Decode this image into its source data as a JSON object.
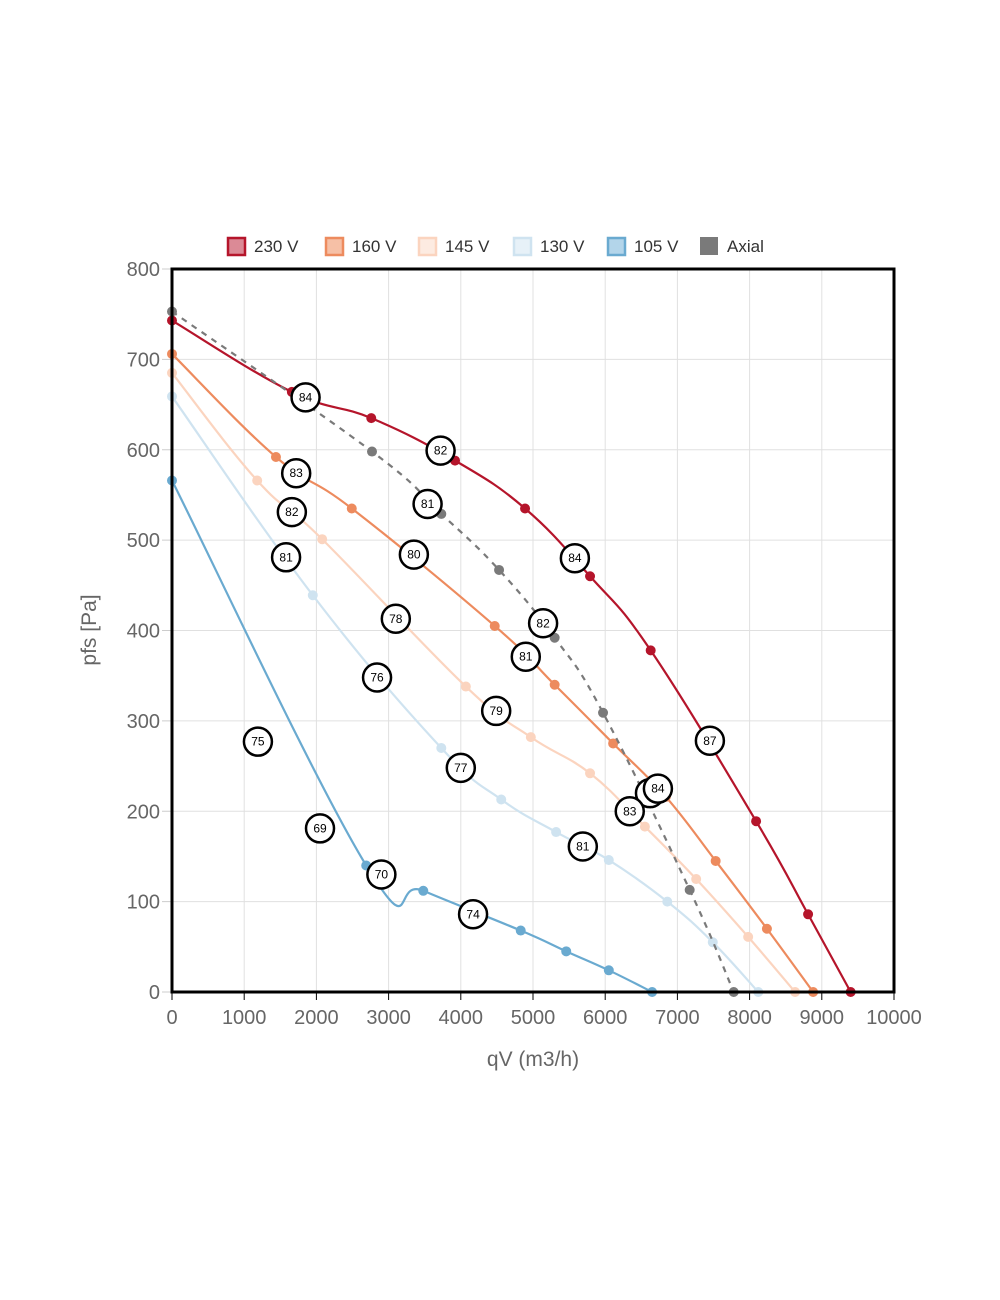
{
  "chart_data": {
    "type": "line",
    "title": "",
    "xlabel": "qV (m3/h)",
    "ylabel": "pfs [Pa]",
    "xlim": [
      0,
      10000
    ],
    "ylim": [
      0,
      800
    ],
    "xticks": [
      0,
      1000,
      2000,
      3000,
      4000,
      5000,
      6000,
      7000,
      8000,
      9000,
      10000
    ],
    "yticks": [
      0,
      100,
      200,
      300,
      400,
      500,
      600,
      700,
      800
    ],
    "grid": true,
    "legend_position": "top",
    "series": [
      {
        "name": "230 V",
        "color": "#b5152b",
        "fill": "#db8a96",
        "dashed": false,
        "points": [
          [
            0,
            743
          ],
          [
            1660,
            664
          ],
          [
            2760,
            635
          ],
          [
            3920,
            588
          ],
          [
            4890,
            535
          ],
          [
            5790,
            460
          ],
          [
            6630,
            378
          ],
          [
            8090,
            189
          ],
          [
            8810,
            86
          ],
          [
            9400,
            0
          ]
        ]
      },
      {
        "name": "160 V",
        "color": "#ed8b5e",
        "fill": "#f6c0a6",
        "dashed": false,
        "points": [
          [
            0,
            706
          ],
          [
            1440,
            592
          ],
          [
            2490,
            535
          ],
          [
            4470,
            405
          ],
          [
            5300,
            340
          ],
          [
            6110,
            275
          ],
          [
            6840,
            216
          ],
          [
            7530,
            145
          ],
          [
            8240,
            70
          ],
          [
            8880,
            0
          ]
        ]
      },
      {
        "name": "145 V",
        "color": "#fbd4bf",
        "fill": "#fdebe1",
        "dashed": false,
        "points": [
          [
            0,
            685
          ],
          [
            1180,
            566
          ],
          [
            2080,
            501
          ],
          [
            4070,
            338
          ],
          [
            4970,
            282
          ],
          [
            5790,
            242
          ],
          [
            6550,
            183
          ],
          [
            7260,
            125
          ],
          [
            7980,
            61
          ],
          [
            8630,
            0
          ]
        ]
      },
      {
        "name": "130 V",
        "color": "#cfe3f0",
        "fill": "#e7f1f8",
        "dashed": false,
        "points": [
          [
            0,
            659
          ],
          [
            1950,
            439
          ],
          [
            3730,
            270
          ],
          [
            4560,
            213
          ],
          [
            5320,
            177
          ],
          [
            6050,
            146
          ],
          [
            6860,
            100
          ],
          [
            7490,
            55
          ],
          [
            8120,
            0
          ]
        ]
      },
      {
        "name": "105 V",
        "color": "#6aaad0",
        "fill": "#b3d5ea",
        "dashed": false,
        "points": [
          [
            0,
            566
          ],
          [
            2690,
            140
          ],
          [
            3480,
            112
          ],
          [
            4830,
            68
          ],
          [
            5460,
            45
          ],
          [
            6050,
            24
          ],
          [
            6650,
            0
          ]
        ]
      },
      {
        "name": "Axial",
        "color": "#7a7a7a",
        "fill": "#7a7a7a",
        "dashed": true,
        "points": [
          [
            0,
            753
          ],
          [
            2770,
            598
          ],
          [
            3730,
            529
          ],
          [
            4530,
            467
          ],
          [
            5300,
            392
          ],
          [
            5970,
            309
          ],
          [
            7170,
            113
          ],
          [
            7780,
            0
          ]
        ]
      }
    ],
    "annotations": [
      {
        "text": "84",
        "x": 1850,
        "y": 658
      },
      {
        "text": "82",
        "x": 3720,
        "y": 599
      },
      {
        "text": "84",
        "x": 5580,
        "y": 480
      },
      {
        "text": "87",
        "x": 7450,
        "y": 278
      },
      {
        "text": "83",
        "x": 1720,
        "y": 574
      },
      {
        "text": "82",
        "x": 1660,
        "y": 531
      },
      {
        "text": "81",
        "x": 1580,
        "y": 481
      },
      {
        "text": "80",
        "x": 3350,
        "y": 484
      },
      {
        "text": "81",
        "x": 3540,
        "y": 540
      },
      {
        "text": "78",
        "x": 3100,
        "y": 413
      },
      {
        "text": "82",
        "x": 5140,
        "y": 408
      },
      {
        "text": "81",
        "x": 4900,
        "y": 371
      },
      {
        "text": "76",
        "x": 2840,
        "y": 348
      },
      {
        "text": "79",
        "x": 4490,
        "y": 311
      },
      {
        "text": "75",
        "x": 1190,
        "y": 277
      },
      {
        "text": "77",
        "x": 4000,
        "y": 248
      },
      {
        "text": "8",
        "x": 6620,
        "y": 220
      },
      {
        "text": "84",
        "x": 6730,
        "y": 225
      },
      {
        "text": "83",
        "x": 6340,
        "y": 200
      },
      {
        "text": "69",
        "x": 2050,
        "y": 181
      },
      {
        "text": "81",
        "x": 5690,
        "y": 161
      },
      {
        "text": "70",
        "x": 2900,
        "y": 130
      },
      {
        "text": "74",
        "x": 4170,
        "y": 86
      }
    ]
  }
}
